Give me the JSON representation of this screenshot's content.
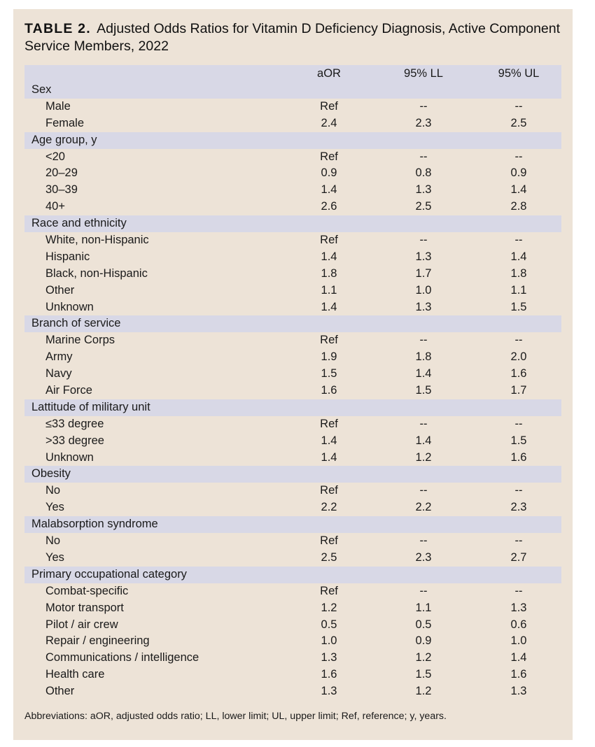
{
  "title": {
    "label": "TABLE 2.",
    "text": "Adjusted Odds Ratios for Vitamin D Deficiency Diagnosis, Active Component Service Members, 2022"
  },
  "columns": [
    "",
    "aOR",
    "95% LL",
    "95% UL"
  ],
  "groups": [
    {
      "label": "Sex",
      "rows": [
        [
          "Male",
          "Ref",
          "--",
          "--"
        ],
        [
          "Female",
          "2.4",
          "2.3",
          "2.5"
        ]
      ]
    },
    {
      "label": "Age group, y",
      "rows": [
        [
          "<20",
          "Ref",
          "--",
          "--"
        ],
        [
          "20–29",
          "0.9",
          "0.8",
          "0.9"
        ],
        [
          "30–39",
          "1.4",
          "1.3",
          "1.4"
        ],
        [
          "40+",
          "2.6",
          "2.5",
          "2.8"
        ]
      ]
    },
    {
      "label": "Race and ethnicity",
      "rows": [
        [
          "White, non-Hispanic",
          "Ref",
          "--",
          "--"
        ],
        [
          "Hispanic",
          "1.4",
          "1.3",
          "1.4"
        ],
        [
          "Black, non-Hispanic",
          "1.8",
          "1.7",
          "1.8"
        ],
        [
          "Other",
          "1.1",
          "1.0",
          "1.1"
        ],
        [
          "Unknown",
          "1.4",
          "1.3",
          "1.5"
        ]
      ]
    },
    {
      "label": "Branch of service",
      "rows": [
        [
          "Marine Corps",
          "Ref",
          "--",
          "--"
        ],
        [
          "Army",
          "1.9",
          "1.8",
          "2.0"
        ],
        [
          "Navy",
          "1.5",
          "1.4",
          "1.6"
        ],
        [
          "Air Force",
          "1.6",
          "1.5",
          "1.7"
        ]
      ]
    },
    {
      "label": "Lattitude of military unit",
      "rows": [
        [
          "≤33 degree",
          "Ref",
          "--",
          "--"
        ],
        [
          ">33 degree",
          "1.4",
          "1.4",
          "1.5"
        ],
        [
          "Unknown",
          "1.4",
          "1.2",
          "1.6"
        ]
      ]
    },
    {
      "label": "Obesity",
      "rows": [
        [
          "No",
          "Ref",
          "--",
          "--"
        ],
        [
          "Yes",
          "2.2",
          "2.2",
          "2.3"
        ]
      ]
    },
    {
      "label": "Malabsorption syndrome",
      "rows": [
        [
          "No",
          "Ref",
          "--",
          "--"
        ],
        [
          "Yes",
          "2.5",
          "2.3",
          "2.7"
        ]
      ]
    },
    {
      "label": "Primary occupational category",
      "rows": [
        [
          "Combat-specific",
          "Ref",
          "--",
          "--"
        ],
        [
          "Motor transport",
          "1.2",
          "1.1",
          "1.3"
        ],
        [
          "Pilot / air crew",
          "0.5",
          "0.5",
          "0.6"
        ],
        [
          "Repair / engineering",
          "1.0",
          "0.9",
          "1.0"
        ],
        [
          "Communications / intelligence",
          "1.3",
          "1.2",
          "1.4"
        ],
        [
          "Health care",
          "1.6",
          "1.5",
          "1.6"
        ],
        [
          "Other",
          "1.3",
          "1.2",
          "1.3"
        ]
      ]
    }
  ],
  "footer": "Abbreviations: aOR, adjusted odds ratio; LL, lower limit; UL, upper limit; Ref, reference; y, years.",
  "colors": {
    "panel": "#ede3d7",
    "band": "#d8d8e6"
  }
}
